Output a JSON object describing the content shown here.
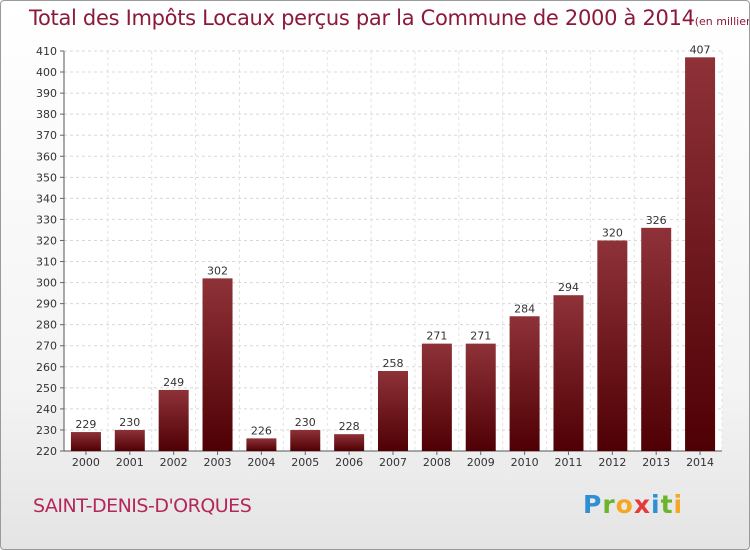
{
  "header": {
    "title": "Total des Impôts Locaux perçus par la Commune de 2000 à 2014",
    "unit": "(en milliers d'€)"
  },
  "footer": {
    "commune": "SAINT-DENIS-D'ORQUES",
    "logo_letters": [
      "P",
      "r",
      "o",
      "x",
      "i",
      "t",
      "i"
    ]
  },
  "colors": {
    "bar_top": "#8e3238",
    "bar_bottom": "#4f0004",
    "title": "#8b1a3a",
    "commune": "#b5275a"
  },
  "chart_data": {
    "type": "bar",
    "categories": [
      "2000",
      "2001",
      "2002",
      "2003",
      "2004",
      "2005",
      "2006",
      "2007",
      "2008",
      "2009",
      "2010",
      "2011",
      "2012",
      "2013",
      "2014"
    ],
    "values": [
      229,
      230,
      249,
      302,
      226,
      230,
      228,
      258,
      271,
      271,
      284,
      294,
      320,
      326,
      407
    ],
    "title": "Total des Impôts Locaux perçus par la Commune de 2000 à 2014",
    "xlabel": "",
    "ylabel": "",
    "ylim": [
      220,
      410
    ],
    "yticks": [
      220,
      230,
      240,
      250,
      260,
      270,
      280,
      290,
      300,
      310,
      320,
      330,
      340,
      350,
      360,
      370,
      380,
      390,
      400,
      410
    ],
    "grid": true,
    "legend": "none"
  }
}
